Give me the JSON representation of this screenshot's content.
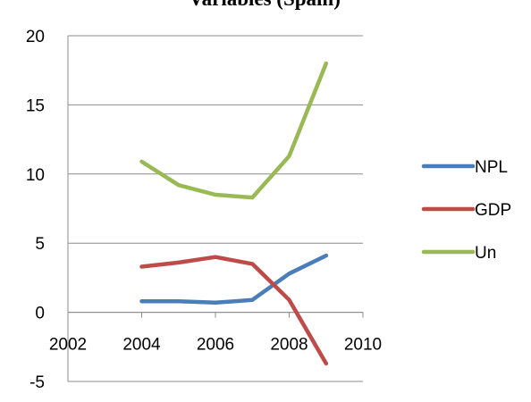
{
  "chart_data": {
    "type": "line",
    "title": "Variables (Spain)",
    "xlim": [
      2002,
      2010
    ],
    "ylim": [
      -5,
      20
    ],
    "x_ticks": [
      2002,
      2004,
      2006,
      2008,
      2010
    ],
    "y_ticks": [
      -5,
      0,
      5,
      10,
      15,
      20
    ],
    "grid": true,
    "legend_position": "right",
    "x": [
      2004,
      2005,
      2006,
      2007,
      2008,
      2009
    ],
    "series": [
      {
        "name": "NPL",
        "color": "#4a7ebb",
        "values": [
          0.8,
          0.8,
          0.7,
          0.9,
          2.8,
          4.1
        ]
      },
      {
        "name": "GDP",
        "color": "#be4b48",
        "values": [
          3.3,
          3.6,
          4.0,
          3.5,
          0.9,
          -3.7
        ]
      },
      {
        "name": "Un",
        "color": "#98b954",
        "values": [
          10.9,
          9.2,
          8.5,
          8.3,
          11.3,
          18.0
        ]
      }
    ]
  }
}
